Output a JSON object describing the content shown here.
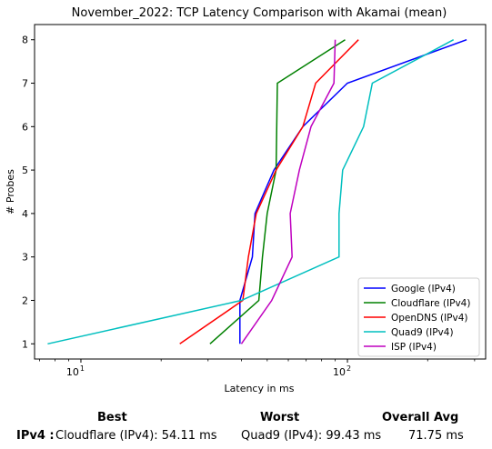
{
  "chart_data": {
    "type": "line",
    "title": "November_2022: TCP Latency Comparison with Akamai (mean)",
    "xlabel": "Latency in ms",
    "ylabel": "# Probes",
    "xscale": "log",
    "xlim": [
      6.7,
      330
    ],
    "ylim": [
      0.65,
      8.35
    ],
    "xticks": [
      {
        "value": 10,
        "base": "10",
        "exp": "1"
      },
      {
        "value": 100,
        "base": "10",
        "exp": "2"
      }
    ],
    "yticks": [
      "1",
      "2",
      "3",
      "4",
      "5",
      "6",
      "7",
      "8"
    ],
    "legend_position": "lower-right",
    "series": [
      {
        "name": "Google (IPv4)",
        "color": "#0000ff",
        "points": [
          [
            39.5,
            1
          ],
          [
            39.5,
            2
          ],
          [
            44,
            3
          ],
          [
            45,
            4
          ],
          [
            53,
            5
          ],
          [
            68,
            6
          ],
          [
            100,
            7
          ],
          [
            280,
            8
          ]
        ]
      },
      {
        "name": "Cloudflare (IPv4)",
        "color": "#008000",
        "points": [
          [
            30.5,
            1
          ],
          [
            46.5,
            2
          ],
          [
            48,
            3
          ],
          [
            50,
            4
          ],
          [
            54,
            5
          ],
          [
            54.3,
            6
          ],
          [
            54.6,
            7
          ],
          [
            98,
            8
          ]
        ]
      },
      {
        "name": "OpenDNS (IPv4)",
        "color": "#ff0000",
        "points": [
          [
            23.5,
            1
          ],
          [
            40.5,
            2
          ],
          [
            42.5,
            3
          ],
          [
            45.5,
            4
          ],
          [
            54,
            5
          ],
          [
            68,
            6
          ],
          [
            76,
            7
          ],
          [
            110,
            8
          ]
        ]
      },
      {
        "name": "Quad9 (IPv4)",
        "color": "#00bfbf",
        "points": [
          [
            7.5,
            1
          ],
          [
            40,
            2
          ],
          [
            93,
            3
          ],
          [
            93,
            4
          ],
          [
            96,
            5
          ],
          [
            115,
            6
          ],
          [
            124,
            7
          ],
          [
            250,
            8
          ]
        ]
      },
      {
        "name": "ISP (IPv4)",
        "color": "#bf00bf",
        "points": [
          [
            40,
            1
          ],
          [
            52,
            2
          ],
          [
            62,
            3
          ],
          [
            61,
            4
          ],
          [
            66,
            5
          ],
          [
            73,
            6
          ],
          [
            89,
            7
          ],
          [
            90,
            8
          ]
        ]
      }
    ]
  },
  "summary": {
    "headers": {
      "best": "Best",
      "worst": "Worst",
      "avg": "Overall Avg"
    },
    "row": {
      "label": "IPv4 :",
      "best": "Cloudflare (IPv4): 54.11 ms",
      "worst": "Quad9 (IPv4): 99.43 ms",
      "avg": "71.75 ms"
    }
  }
}
